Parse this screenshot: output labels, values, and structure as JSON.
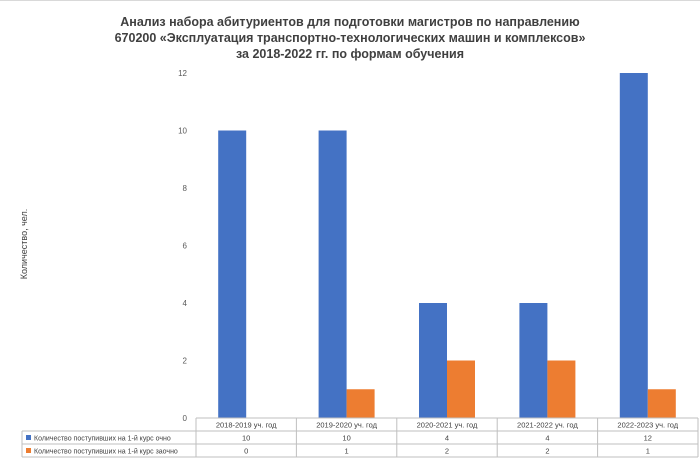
{
  "chart_data": {
    "type": "bar",
    "title_lines": [
      "Анализ набора абитуриентов для подготовки магистров по направлению",
      "670200 «Эксплуатация транспортно-технологических машин и комплексов»",
      "за 2018-2022 гг. по формам обучения"
    ],
    "ylabel": "Количество, чел.",
    "xlabel": "",
    "categories": [
      "2018-2019 уч. год",
      "2019-2020 уч. год",
      "2020-2021 уч. год",
      "2021-2022 уч. год",
      "2022-2023 уч. год"
    ],
    "series": [
      {
        "name": "Количество поступивших на 1-й курс очно",
        "values": [
          10,
          10,
          4,
          4,
          12
        ],
        "color": "#4472c4"
      },
      {
        "name": "Количество поступивших на 1-й курс заочно",
        "values": [
          0,
          1,
          2,
          2,
          1
        ],
        "color": "#ed7d31"
      }
    ],
    "ylim": [
      0,
      12
    ],
    "yticks": [
      0,
      2,
      4,
      6,
      8,
      10,
      12
    ],
    "legend": "data-table-bottom",
    "grid": false
  }
}
